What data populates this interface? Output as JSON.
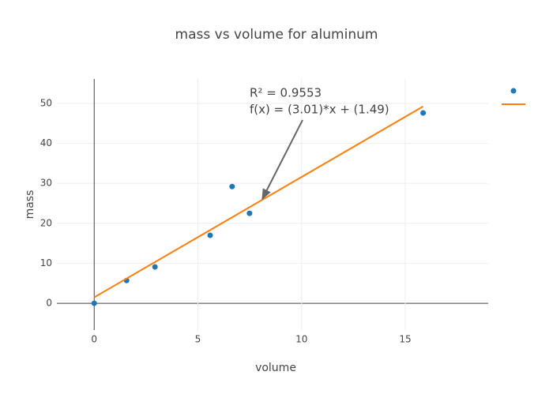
{
  "chart_data": {
    "type": "scatter",
    "title": "mass vs volume for aluminum",
    "x_label": "volume",
    "y_label": "mass",
    "annotation": [
      "R² = 0.9553",
      "f(x) = (3.01)*x + (1.49)"
    ],
    "series": [
      {
        "mode": "markers",
        "color": "#1f77b4",
        "x": [
          0,
          1.56,
          2.93,
          5.59,
          6.65,
          7.49,
          15.86
        ],
        "values": [
          0,
          5.7,
          9.1,
          17.0,
          29.2,
          22.5,
          47.6
        ]
      },
      {
        "mode": "lines",
        "color": "#ff7f0e",
        "x": [
          0,
          15.86
        ],
        "values": [
          1.49,
          49.23
        ]
      }
    ],
    "xlim": [
      -1.8,
      19
    ],
    "ylim": [
      -6.7,
      56.1
    ],
    "xticks": [
      0,
      5,
      10,
      15
    ],
    "yticks": [
      0,
      10,
      20,
      30,
      40,
      50
    ],
    "grid": true
  }
}
